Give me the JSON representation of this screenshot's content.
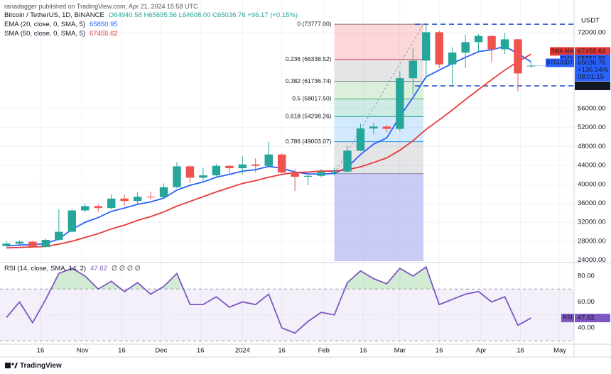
{
  "header": {
    "published": "ranadagger published on TradingView.com, Apr 21, 2024 15:58 UTC"
  },
  "footer": {
    "brand": "TradingView"
  },
  "chart_data": [
    {
      "type": "candlestick",
      "title": "Bitcoin / TetherUS, 1D, BINANCE",
      "quote": "O64940.58 H65695.56 L64608.00 C65036.76 +96.17 (+0.15%)",
      "currency": "USDT",
      "x": [
        0,
        5,
        10,
        15,
        20,
        25,
        30,
        35,
        40,
        45,
        50,
        55,
        60,
        65,
        70,
        75,
        80,
        85,
        90,
        95,
        100,
        105,
        110,
        115,
        120,
        125,
        130,
        135,
        140,
        145,
        150,
        155,
        160,
        165,
        170,
        175,
        180,
        185,
        190,
        195,
        200
      ],
      "open": [
        27000,
        27500,
        27900,
        26800,
        28300,
        30000,
        34500,
        35400,
        35000,
        37000,
        36500,
        37400,
        37300,
        39400,
        43800,
        41400,
        41900,
        43900,
        43400,
        44200,
        43900,
        46300,
        42500,
        41600,
        41800,
        42600,
        42700,
        47100,
        51800,
        52200,
        51700,
        62400,
        66100,
        72100,
        65300,
        67800,
        70000,
        71300,
        68500,
        70600,
        64940.58
      ],
      "high": [
        28000,
        28200,
        28100,
        28600,
        34700,
        34800,
        35900,
        35800,
        37900,
        37800,
        38300,
        38400,
        40200,
        44700,
        44000,
        43500,
        44300,
        44100,
        45900,
        45500,
        49000,
        46500,
        43200,
        42200,
        43200,
        43500,
        48200,
        52800,
        53000,
        52500,
        63900,
        68800,
        73777,
        72400,
        68900,
        71600,
        71700,
        71500,
        71900,
        70700,
        65695.56
      ],
      "low": [
        26900,
        27200,
        26600,
        26700,
        28100,
        29900,
        34100,
        34200,
        34700,
        35600,
        35800,
        36800,
        37000,
        39200,
        40300,
        40600,
        41500,
        42000,
        42100,
        42500,
        43600,
        42000,
        38600,
        39800,
        41500,
        41900,
        42500,
        47000,
        50600,
        50900,
        51300,
        59000,
        62300,
        64500,
        60800,
        64600,
        68000,
        65800,
        67500,
        59600,
        64608
      ],
      "close": [
        27500,
        27900,
        26800,
        28300,
        30000,
        34500,
        35400,
        35000,
        37000,
        36500,
        37400,
        37300,
        39400,
        43800,
        41400,
        41900,
        43900,
        43400,
        44200,
        43900,
        46300,
        42500,
        41600,
        41800,
        42600,
        42700,
        47100,
        51800,
        52200,
        51700,
        62400,
        66100,
        72100,
        65300,
        67800,
        70000,
        71300,
        68500,
        70600,
        63400,
        65036.76
      ],
      "up_color": "#26a69a",
      "down_color": "#ef5350",
      "series": [
        {
          "name": "EMA (20, close, 0, SMA, 5)",
          "tag": "EMA",
          "color": "#2962ff",
          "values": [
            27000,
            27200,
            27300,
            27500,
            28500,
            30500,
            32000,
            33000,
            34300,
            35000,
            35800,
            36300,
            37100,
            38800,
            39800,
            40500,
            41500,
            42100,
            42800,
            43100,
            43800,
            43400,
            42600,
            42200,
            42200,
            42300,
            43600,
            46300,
            48500,
            49800,
            54300,
            58300,
            62700,
            64100,
            65500,
            66800,
            68000,
            68400,
            69100,
            67600,
            65850.95
          ]
        },
        {
          "name": "SMA (50, close, 0, SMA, 5)",
          "tag": "SMA:MA",
          "color": "#e53935",
          "values": [
            26600,
            26700,
            26800,
            26900,
            27400,
            28000,
            28800,
            29600,
            30600,
            31400,
            32400,
            33200,
            34200,
            35400,
            36400,
            37400,
            38400,
            39300,
            40200,
            40800,
            41500,
            42100,
            42500,
            42600,
            42800,
            42800,
            43100,
            43700,
            44600,
            45600,
            47200,
            49200,
            51600,
            53600,
            55700,
            57900,
            60000,
            62100,
            64100,
            65900,
            67455.62
          ]
        }
      ],
      "price_tag": {
        "symbol": "BTCUSDT",
        "change": "+136.54%",
        "countdown": "08:01:15",
        "color": "#2962ff"
      },
      "levels": [
        {
          "value": 73777
        },
        {
          "value": 60775,
          "label": "60775.00"
        }
      ],
      "level_color": "#1848cc",
      "fib": {
        "x": [
          125,
          159
        ],
        "levels": [
          {
            "label": "0 (73777.00)",
            "value": 73777,
            "color": "#787b86"
          },
          {
            "label": "0.236 (66338.52)",
            "value": 66338.52,
            "color": "#f23645"
          },
          {
            "label": "0.382 (61736.74)",
            "value": 61736.74,
            "color": "#787b86"
          },
          {
            "label": "0.5 (58017.50)",
            "value": 58017.5,
            "color": "#4caf50"
          },
          {
            "label": "0.618 (54298.26)",
            "value": 54298.26,
            "color": "#089981"
          },
          {
            "label": "0.786 (49003.07)",
            "value": 49003.07,
            "color": "#2196f3"
          },
          {
            "value": 42258,
            "color": "#787b86"
          }
        ]
      },
      "xlim": [
        0,
        216.4
      ],
      "xticks": [
        {
          "value": 13,
          "label": "16"
        },
        {
          "value": 29,
          "label": "Nov"
        },
        {
          "value": 44,
          "label": "16"
        },
        {
          "value": 59,
          "label": "Dec"
        },
        {
          "value": 74,
          "label": "16"
        },
        {
          "value": 90,
          "label": "2024"
        },
        {
          "value": 105,
          "label": "16"
        },
        {
          "value": 121,
          "label": "Feb"
        },
        {
          "value": 136,
          "label": "16"
        },
        {
          "value": 150,
          "label": "Mar"
        },
        {
          "value": 165,
          "label": "16"
        },
        {
          "value": 181,
          "label": "Apr"
        },
        {
          "value": 196,
          "label": "16"
        },
        {
          "value": 211,
          "label": "May"
        }
      ],
      "ylim": [
        23800,
        74700
      ],
      "yticks": [
        {
          "value": 72000,
          "label": "72000.00"
        },
        {
          "value": 56000,
          "label": "56000.00"
        },
        {
          "value": 52000,
          "label": "52000.00"
        },
        {
          "value": 48000,
          "label": "48000.00"
        },
        {
          "value": 44000,
          "label": "44000.00"
        },
        {
          "value": 40000,
          "label": "40000.00"
        },
        {
          "value": 36000,
          "label": "36000.00"
        },
        {
          "value": 32000,
          "label": "32000.00"
        },
        {
          "value": 28000,
          "label": "28000.00"
        },
        {
          "value": 24000,
          "label": "24000.00"
        }
      ],
      "grid": true
    },
    {
      "type": "line",
      "title": "RSI (14, close, SMA, 14, 2)",
      "extras": "∅ ∅ ∅ ∅",
      "series": [
        {
          "name": "RSI",
          "color": "#7e57c2",
          "values": [
            48,
            60,
            44,
            62,
            82,
            86,
            80,
            70,
            76,
            68,
            75,
            66,
            72,
            82,
            58,
            58,
            64,
            56,
            60,
            58,
            66,
            40,
            36,
            45,
            52,
            50,
            75,
            84,
            78,
            74,
            86,
            80,
            87,
            58,
            62,
            66,
            68,
            60,
            64,
            42,
            47.62
          ]
        }
      ],
      "upper": 70,
      "middle": 50,
      "lower": 30,
      "ylim": [
        27.4,
        89.3
      ],
      "yticks": [
        {
          "value": 80,
          "label": "80.00"
        },
        {
          "value": 60,
          "label": "60.00"
        },
        {
          "value": 40,
          "label": "40.00"
        }
      ]
    }
  ]
}
